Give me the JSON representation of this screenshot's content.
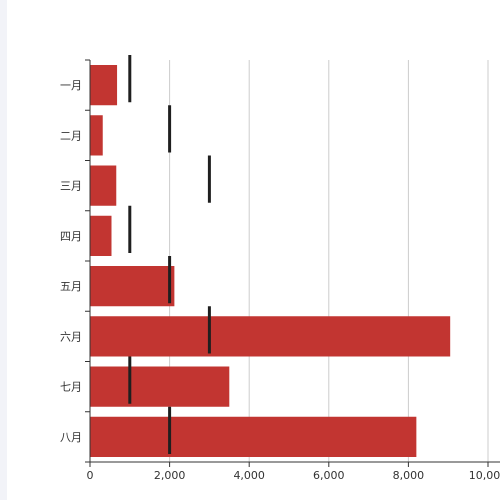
{
  "chart_data": {
    "type": "bar",
    "orientation": "horizontal",
    "categories": [
      "一月",
      "二月",
      "三月",
      "四月",
      "五月",
      "六月",
      "七月",
      "八月"
    ],
    "series": [
      {
        "values": [
          680,
          320,
          660,
          540,
          2120,
          9050,
          3500,
          8200
        ],
        "color": "#c23531"
      },
      {
        "type": "marker",
        "values": [
          1000,
          2000,
          3000,
          1000,
          2000,
          3000,
          1000,
          2000
        ],
        "color": "#1f1f1f"
      }
    ],
    "xlim": [
      0,
      10000
    ],
    "x_ticks": [
      "0",
      "2,000",
      "4,000",
      "6,000",
      "8,000",
      "10,000"
    ],
    "grid": "vertical",
    "xlabel": "",
    "ylabel": "",
    "title": ""
  }
}
